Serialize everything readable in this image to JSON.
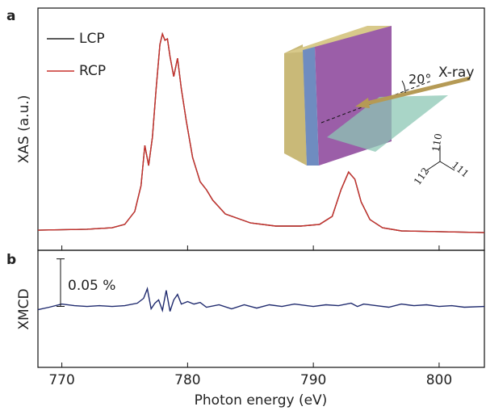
{
  "chart_data": [
    {
      "type": "line",
      "panel": "a",
      "ylabel": "XAS (a.u.)",
      "ylim": [
        0,
        1
      ],
      "xlim": [
        768.1,
        803.6
      ],
      "legend": "upper left",
      "x": [
        768.1,
        772,
        774,
        775,
        775.8,
        776.3,
        776.6,
        776.9,
        777.2,
        777.5,
        777.8,
        778.0,
        778.2,
        778.4,
        778.6,
        778.9,
        779.2,
        779.5,
        779.9,
        780.4,
        781.0,
        781.5,
        782.0,
        783,
        785,
        787,
        789,
        790.5,
        791.5,
        792.2,
        792.8,
        793.3,
        793.8,
        794.5,
        795.5,
        797,
        800,
        803.6
      ],
      "series": [
        {
          "name": "LCP",
          "color": "#222222",
          "values": [
            0.083,
            0.087,
            0.093,
            0.107,
            0.16,
            0.267,
            0.433,
            0.35,
            0.467,
            0.667,
            0.85,
            0.893,
            0.867,
            0.873,
            0.8,
            0.717,
            0.793,
            0.667,
            0.533,
            0.383,
            0.283,
            0.25,
            0.207,
            0.15,
            0.113,
            0.1,
            0.1,
            0.107,
            0.14,
            0.25,
            0.323,
            0.293,
            0.2,
            0.127,
            0.093,
            0.08,
            0.077,
            0.073
          ]
        },
        {
          "name": "RCP",
          "color": "#c8322d",
          "values": [
            0.083,
            0.087,
            0.093,
            0.107,
            0.16,
            0.267,
            0.433,
            0.35,
            0.467,
            0.667,
            0.85,
            0.893,
            0.867,
            0.873,
            0.8,
            0.717,
            0.793,
            0.667,
            0.533,
            0.383,
            0.283,
            0.25,
            0.207,
            0.15,
            0.113,
            0.1,
            0.1,
            0.107,
            0.14,
            0.25,
            0.323,
            0.293,
            0.2,
            0.127,
            0.093,
            0.08,
            0.077,
            0.073
          ]
        }
      ],
      "inset": {
        "angle_label": "20°",
        "beam_label": "X-ray",
        "axes": [
          "110",
          "111",
          "112"
        ]
      }
    },
    {
      "type": "line",
      "panel": "b",
      "ylabel": "XMCD",
      "xlabel": "Photon energy (eV)",
      "ylim": [
        -0.064,
        0.059
      ],
      "xlim": [
        768.1,
        803.6
      ],
      "xticks": [
        770,
        780,
        790,
        800
      ],
      "scale_bar": {
        "text": "0.05 %",
        "value": 0.05
      },
      "x": [
        768.1,
        769,
        770,
        771,
        772,
        773,
        774,
        775,
        776,
        776.5,
        776.8,
        777.1,
        777.4,
        777.7,
        778,
        778.3,
        778.6,
        778.9,
        779.2,
        779.5,
        780,
        780.5,
        781,
        781.5,
        782.5,
        783.5,
        784.5,
        785.5,
        786.5,
        787.5,
        788.5,
        790,
        791,
        792,
        793,
        793.5,
        794,
        795,
        796,
        797,
        798,
        799,
        800,
        801,
        802,
        803.6
      ],
      "series": [
        {
          "name": "XMCD",
          "color": "#1f2a6e",
          "values": [
            -0.0034,
            -0.0008,
            0.0025,
            0.0008,
            0,
            0.0008,
            0,
            0.0008,
            0.0034,
            0.0085,
            0.0186,
            -0.0025,
            0.0034,
            0.0068,
            -0.0042,
            0.0169,
            -0.0051,
            0.0068,
            0.0127,
            0.0025,
            0.0051,
            0.0025,
            0.0042,
            -0.0008,
            0.0017,
            -0.0025,
            0.0017,
            -0.0017,
            0.0017,
            0,
            0.0025,
            0,
            0.0017,
            0.0008,
            0.0034,
            0,
            0.0025,
            0.0008,
            -0.0008,
            0.0025,
            0.0008,
            0.0017,
            0,
            0.0008,
            -0.0008,
            0
          ]
        }
      ]
    }
  ]
}
